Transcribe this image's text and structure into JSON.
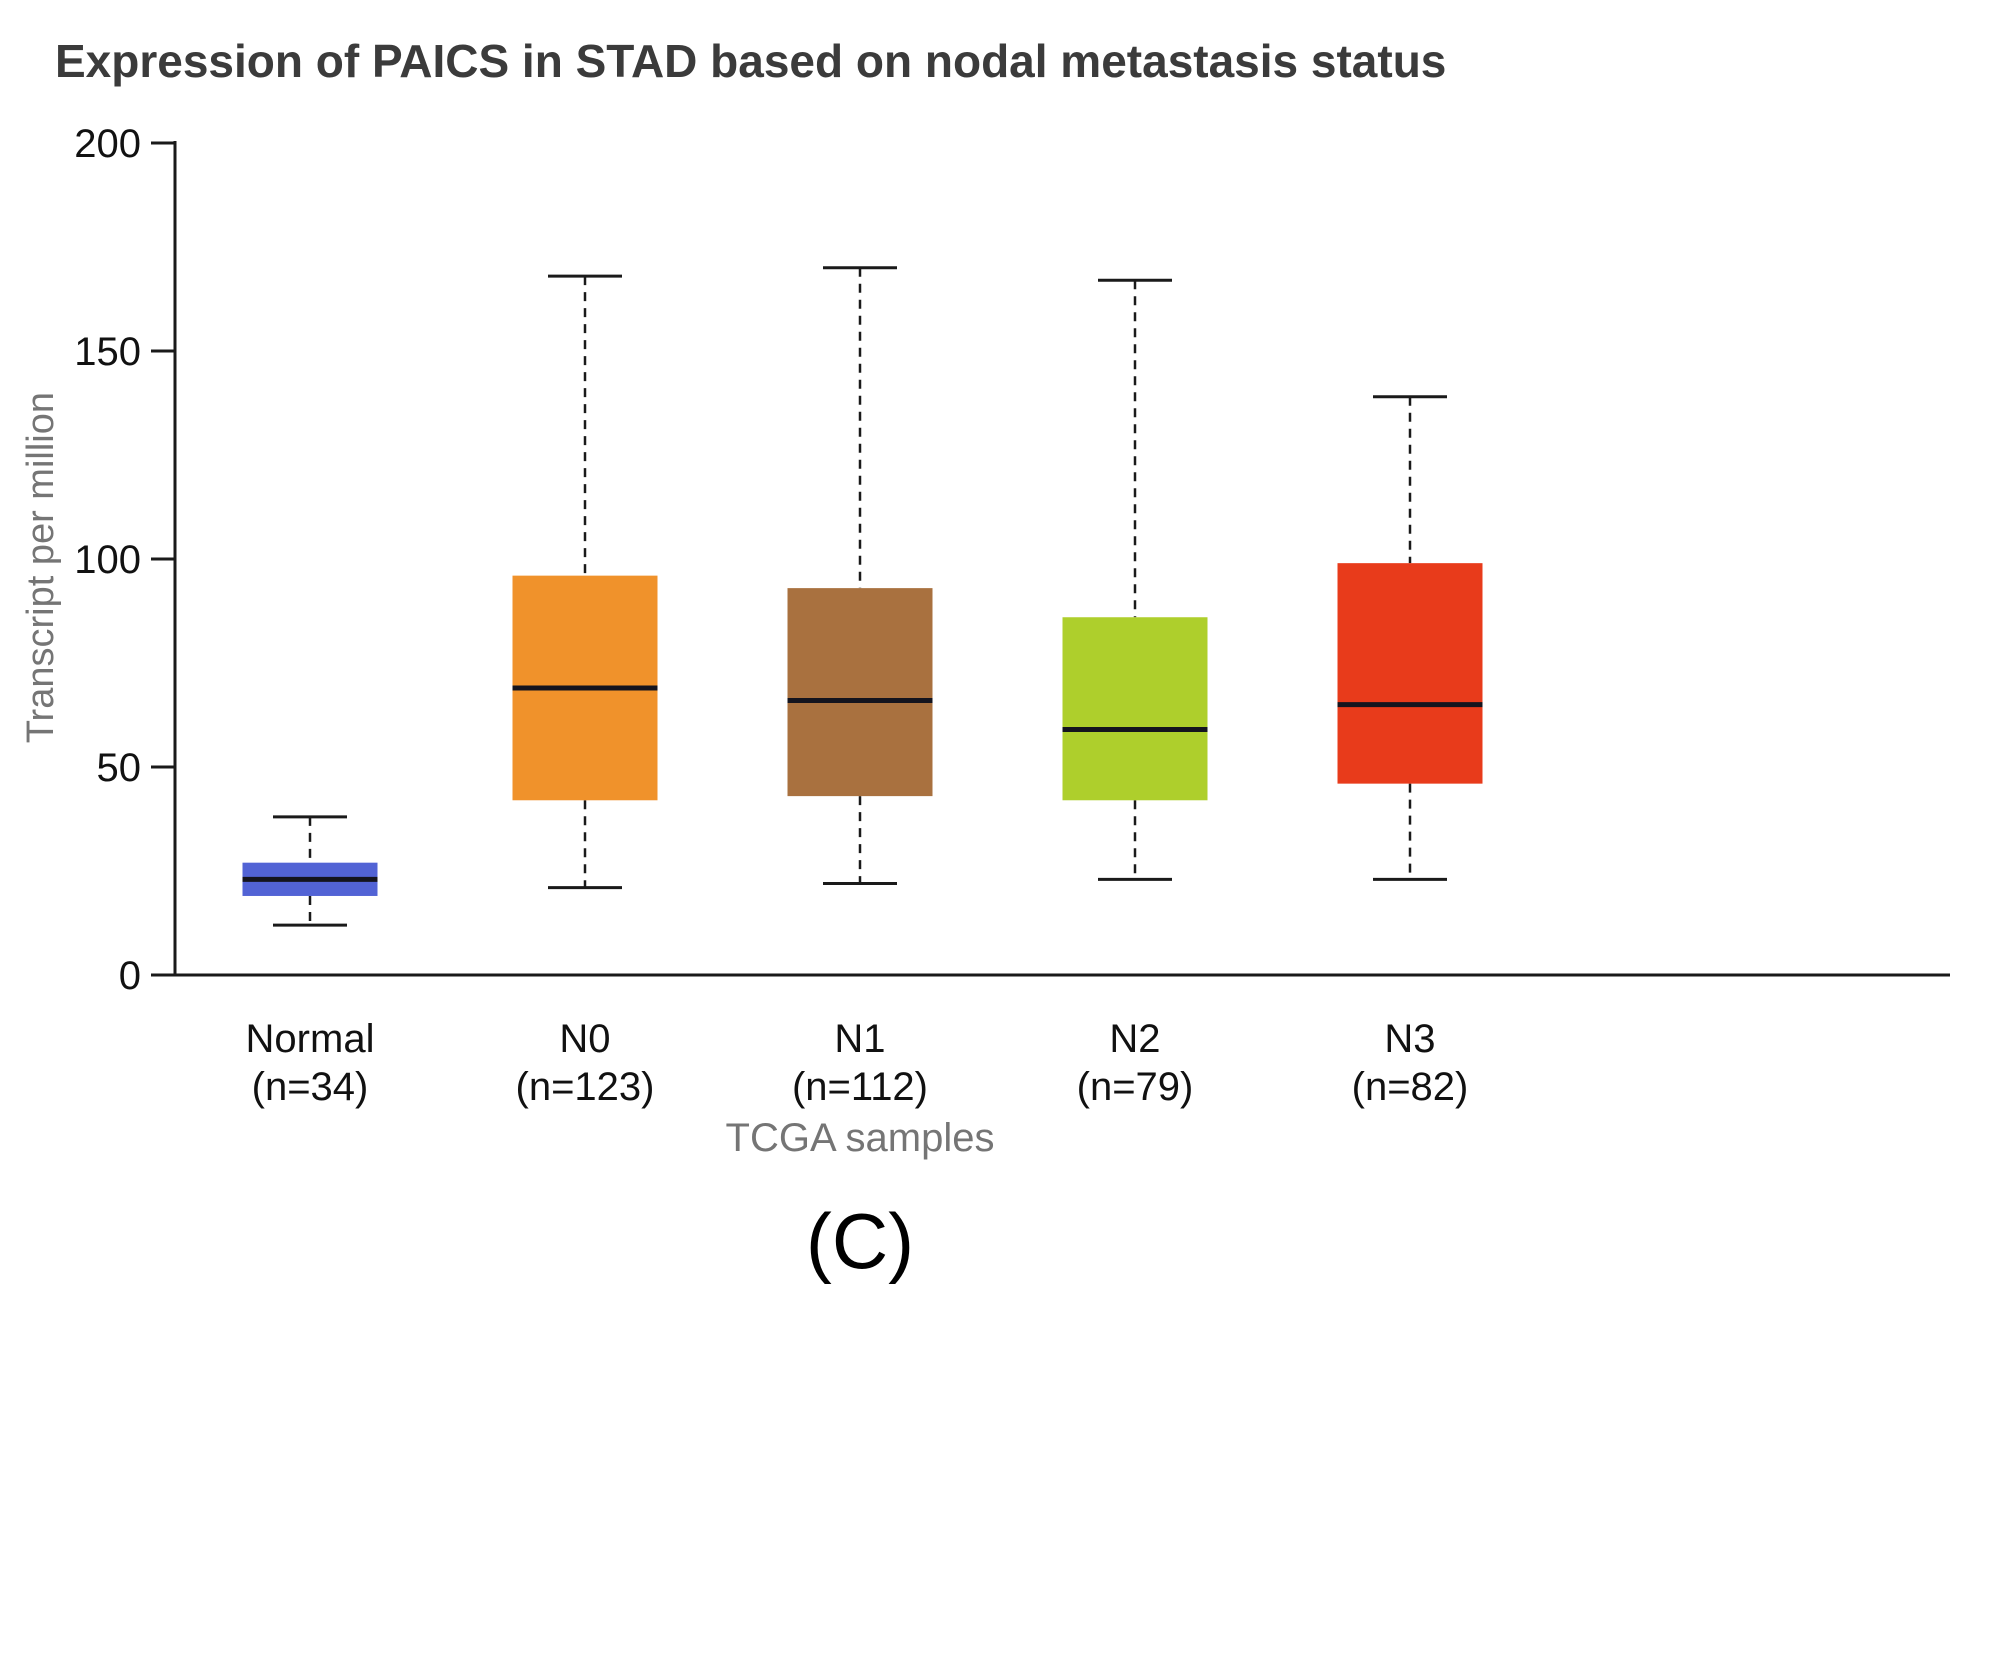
{
  "figure": {
    "caption": "(C)"
  },
  "chart_data": {
    "type": "box",
    "title": "Expression of PAICS in STAD based on nodal metastasis status",
    "xlabel": "TCGA samples",
    "ylabel": "Transcript per million",
    "ylim": [
      0,
      200
    ],
    "yticks": [
      0,
      50,
      100,
      150,
      200
    ],
    "grid": false,
    "legend": "none",
    "groups": [
      {
        "label": "Normal",
        "n_label": "(n=34)",
        "color": "#5263d5",
        "whisker_low": 12,
        "q1": 19,
        "median": 23,
        "q3": 27,
        "whisker_high": 38
      },
      {
        "label": "N0",
        "n_label": "(n=123)",
        "color": "#f0922b",
        "whisker_low": 21,
        "q1": 42,
        "median": 69,
        "q3": 96,
        "whisker_high": 168
      },
      {
        "label": "N1",
        "n_label": "(n=112)",
        "color": "#a9713f",
        "whisker_low": 22,
        "q1": 43,
        "median": 66,
        "q3": 93,
        "whisker_high": 170
      },
      {
        "label": "N2",
        "n_label": "(n=79)",
        "color": "#aecf2c",
        "whisker_low": 23,
        "q1": 42,
        "median": 59,
        "q3": 86,
        "whisker_high": 167
      },
      {
        "label": "N3",
        "n_label": "(n=82)",
        "color": "#e83b1b",
        "whisker_low": 23,
        "q1": 46,
        "median": 65,
        "q3": 99,
        "whisker_high": 139
      }
    ],
    "axis_color": "#1a1a1a",
    "median_color": "#14141e",
    "tick_label_color": "#111111",
    "category_label_color": "#111111"
  }
}
